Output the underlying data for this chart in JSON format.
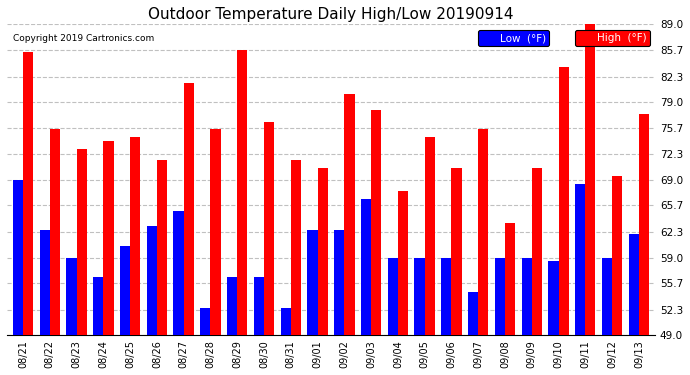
{
  "title": "Outdoor Temperature Daily High/Low 20190914",
  "copyright": "Copyright 2019 Cartronics.com",
  "dates": [
    "08/21",
    "08/22",
    "08/23",
    "08/24",
    "08/25",
    "08/26",
    "08/27",
    "08/28",
    "08/29",
    "08/30",
    "08/31",
    "09/01",
    "09/02",
    "09/03",
    "09/04",
    "09/05",
    "09/06",
    "09/07",
    "09/08",
    "09/09",
    "09/10",
    "09/11",
    "09/12",
    "09/13"
  ],
  "high": [
    85.5,
    75.5,
    73.0,
    74.0,
    74.5,
    71.5,
    81.5,
    75.5,
    85.7,
    76.5,
    71.5,
    70.5,
    80.0,
    78.0,
    67.5,
    74.5,
    70.5,
    75.5,
    63.5,
    70.5,
    83.5,
    89.0,
    69.5,
    77.5
  ],
  "low": [
    69.0,
    62.5,
    59.0,
    56.5,
    60.5,
    63.0,
    65.0,
    52.5,
    56.5,
    56.5,
    52.5,
    62.5,
    62.5,
    66.5,
    59.0,
    59.0,
    59.0,
    54.5,
    59.0,
    59.0,
    58.5,
    68.5,
    59.0,
    62.0
  ],
  "ymin": 49.0,
  "ymax": 89.0,
  "yticks": [
    49.0,
    52.3,
    55.7,
    59.0,
    62.3,
    65.7,
    69.0,
    72.3,
    75.7,
    79.0,
    82.3,
    85.7,
    89.0
  ],
  "high_color": "#ff0000",
  "low_color": "#0000ff",
  "bg_color": "#ffffff",
  "grid_color": "#c0c0c0",
  "title_fontsize": 11,
  "legend_low_label": "Low  (°F)",
  "legend_high_label": "High  (°F)"
}
